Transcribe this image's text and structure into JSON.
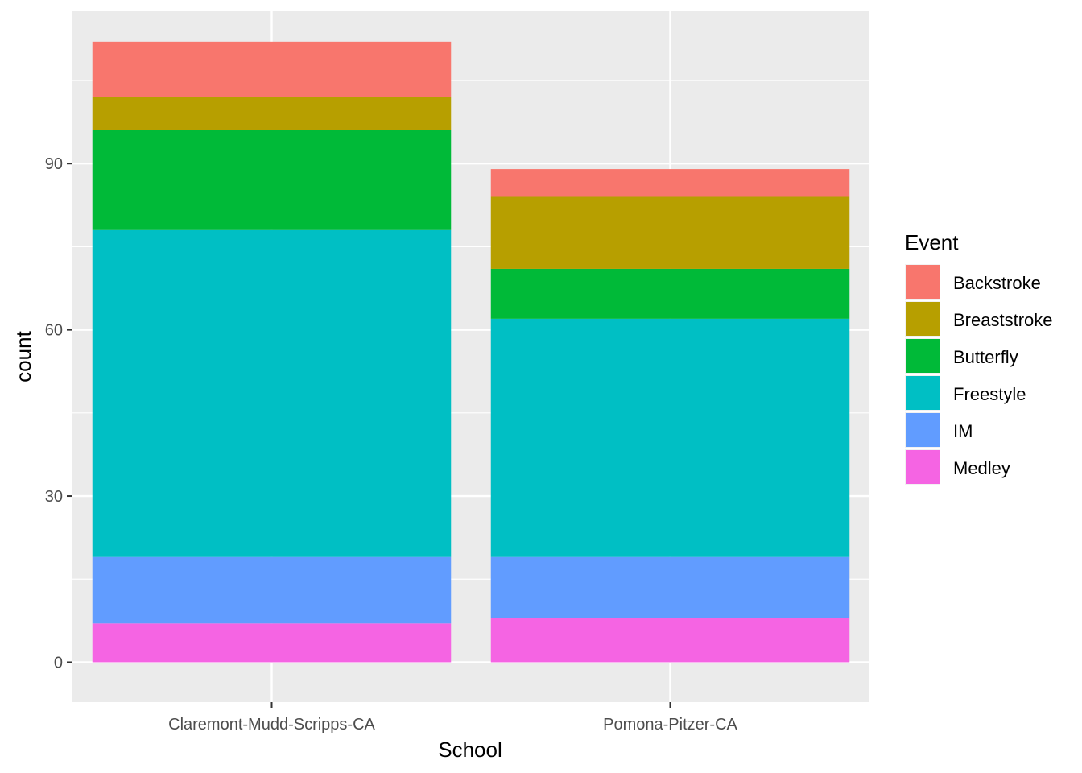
{
  "chart_data": {
    "type": "bar",
    "stacked": true,
    "title": "",
    "xlabel": "School",
    "ylabel": "count",
    "ylim": [
      -7.2,
      117.5
    ],
    "yticks": [
      0,
      30,
      60,
      90
    ],
    "categories": [
      "Claremont-Mudd-Scripps-CA",
      "Pomona-Pitzer-CA"
    ],
    "legend": {
      "title": "Event",
      "placement": "right"
    },
    "grid": true,
    "series": [
      {
        "name": "Medley",
        "color": "#F564E3",
        "values": [
          7,
          8
        ]
      },
      {
        "name": "IM",
        "color": "#619CFF",
        "values": [
          12,
          11
        ]
      },
      {
        "name": "Freestyle",
        "color": "#00BFC4",
        "values": [
          59,
          43
        ]
      },
      {
        "name": "Butterfly",
        "color": "#00BA38",
        "values": [
          18,
          9
        ]
      },
      {
        "name": "Breaststroke",
        "color": "#B79F00",
        "values": [
          6,
          13
        ]
      },
      {
        "name": "Backstroke",
        "color": "#F8766D",
        "values": [
          10,
          5
        ]
      }
    ],
    "legend_order": [
      "Backstroke",
      "Breaststroke",
      "Butterfly",
      "Freestyle",
      "IM",
      "Medley"
    ]
  }
}
